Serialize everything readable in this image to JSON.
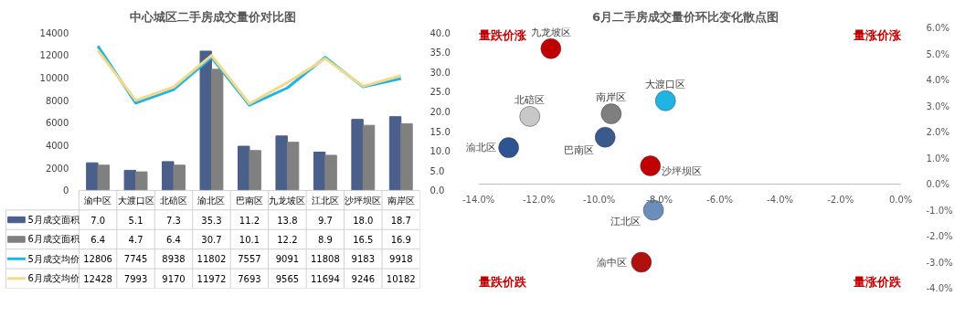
{
  "chart_data": [
    {
      "type": "bar",
      "title": "中心城区二手房成交量价对比图",
      "categories": [
        "渝中区",
        "大渡口区",
        "北碚区",
        "渝北区",
        "巴南区",
        "九龙坡区",
        "江北区",
        "沙坪坝区",
        "南岸区"
      ],
      "series": [
        {
          "name": "5月成交面积",
          "axis": "y2",
          "color": "#4a5f8a",
          "values": [
            7.0,
            5.1,
            7.3,
            35.3,
            11.2,
            13.8,
            9.7,
            18.0,
            18.7
          ],
          "value_labels": [
            "7.0",
            "5.1",
            "7.3",
            "35.3",
            "11.2",
            "13.8",
            "9.7",
            "18.0",
            "18.7"
          ]
        },
        {
          "name": "6月成交面积",
          "axis": "y2",
          "color": "#808080",
          "values": [
            6.4,
            4.7,
            6.4,
            30.7,
            10.1,
            12.2,
            8.9,
            16.5,
            16.9
          ],
          "value_labels": [
            "6.4",
            "4.7",
            "6.4",
            "30.7",
            "10.1",
            "12.2",
            "8.9",
            "16.5",
            "16.9"
          ]
        },
        {
          "name": "5月成交均价",
          "type": "line",
          "color": "#1fb4e6",
          "values": [
            12806,
            7745,
            8938,
            11802,
            7557,
            9091,
            11808,
            9183,
            9918
          ],
          "value_labels": [
            "12806",
            "7745",
            "8938",
            "11802",
            "7557",
            "9091",
            "11808",
            "9183",
            "9918"
          ]
        },
        {
          "name": "6月成交均价",
          "type": "line",
          "color": "#f5d98a",
          "values": [
            12428,
            7993,
            9170,
            11972,
            7693,
            9565,
            11694,
            9246,
            10182
          ],
          "value_labels": [
            "12428",
            "7993",
            "9170",
            "11972",
            "7693",
            "9565",
            "11694",
            "9246",
            "10182"
          ]
        }
      ],
      "ylim": [
        0,
        14000
      ],
      "yticks": [
        0,
        2000,
        4000,
        6000,
        8000,
        10000,
        12000,
        14000
      ],
      "y2lim": [
        0,
        40
      ],
      "y2ticks": [
        {
          "value": 0,
          "label": "0.0"
        },
        {
          "value": 5,
          "label": "5.0"
        },
        {
          "value": 10,
          "label": "10.0"
        },
        {
          "value": 15,
          "label": "15.0"
        },
        {
          "value": 20,
          "label": "20.0"
        },
        {
          "value": 25,
          "label": "25.0"
        },
        {
          "value": 30,
          "label": "30.0"
        },
        {
          "value": 35,
          "label": "35.0"
        },
        {
          "value": 40,
          "label": "40.0"
        }
      ],
      "legend": "bottom",
      "grid": false,
      "marker": "none",
      "line_style": "solid"
    },
    {
      "type": "scatter",
      "title": "6月二手房成交量价环比变化散点图",
      "series": [
        {
          "name": "九龙坡区",
          "color": "#c00000",
          "x": [
            -11.6
          ],
          "values": [
            5.2
          ]
        },
        {
          "name": "北碚区",
          "color": "#c8c8c8",
          "x": [
            -12.3
          ],
          "values": [
            2.6
          ]
        },
        {
          "name": "南岸区",
          "color": "#7f7f7f",
          "x": [
            -9.6
          ],
          "values": [
            2.7
          ]
        },
        {
          "name": "大渡口区",
          "color": "#1fb4e6",
          "x": [
            -7.8
          ],
          "values": [
            3.2
          ]
        },
        {
          "name": "巴南区",
          "color": "#3b5a8c",
          "x": [
            -9.8
          ],
          "values": [
            1.8
          ]
        },
        {
          "name": "渝北区",
          "color": "#2e5591",
          "x": [
            -13.0
          ],
          "values": [
            1.4
          ]
        },
        {
          "name": "沙坪坝区",
          "color": "#c00000",
          "x": [
            -8.3
          ],
          "values": [
            0.7
          ]
        },
        {
          "name": "江北区",
          "color": "#6a8fbb",
          "x": [
            -8.2
          ],
          "values": [
            -1.0
          ]
        },
        {
          "name": "渝中区",
          "color": "#b01010",
          "x": [
            -8.6
          ],
          "values": [
            -3.0
          ]
        }
      ],
      "xlim": [
        -14,
        0
      ],
      "xticks": [
        {
          "value": -14,
          "label": "-14.0%"
        },
        {
          "value": -12,
          "label": "-12.0%"
        },
        {
          "value": -10,
          "label": "-10.0%"
        },
        {
          "value": -8,
          "label": "-8.0%"
        },
        {
          "value": -6,
          "label": "-6.0%"
        },
        {
          "value": -4,
          "label": "-4.0%"
        },
        {
          "value": -2,
          "label": "-2.0%"
        },
        {
          "value": 0,
          "label": "0.0%"
        }
      ],
      "ylim": [
        -4,
        6
      ],
      "yticks": [
        {
          "value": -4,
          "label": "-4.0%"
        },
        {
          "value": -3,
          "label": "-3.0%"
        },
        {
          "value": -2,
          "label": "-2.0%"
        },
        {
          "value": -1,
          "label": "-1.0%"
        },
        {
          "value": 0,
          "label": "0.0%"
        },
        {
          "value": 1,
          "label": "1.0%"
        },
        {
          "value": 2,
          "label": "2.0%"
        },
        {
          "value": 3,
          "label": "3.0%"
        },
        {
          "value": 4,
          "label": "4.0%"
        },
        {
          "value": 5,
          "label": "5.0%"
        },
        {
          "value": 6,
          "label": "6.0%"
        }
      ],
      "annotations": [
        "量跌价涨",
        "量涨价涨",
        "量跌价跌",
        "量涨价跌"
      ],
      "marker": "circle",
      "grid": false
    }
  ]
}
